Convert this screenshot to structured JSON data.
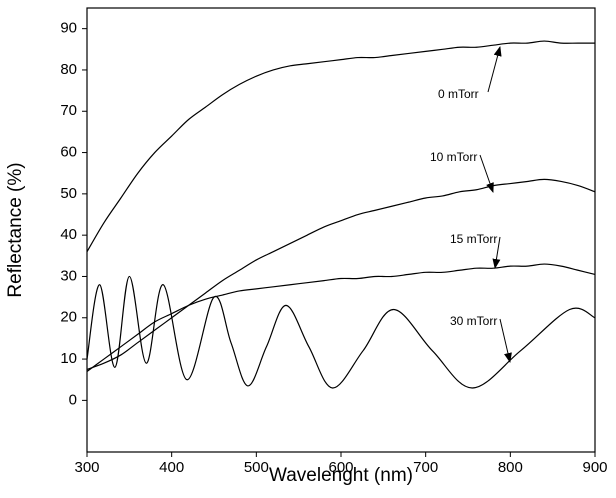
{
  "chart_data": {
    "type": "line",
    "xlabel": "Wavelenght (nm)",
    "ylabel": "Reflectance (%)",
    "xlim": [
      300,
      900
    ],
    "xticks": [
      300,
      400,
      500,
      600,
      700,
      800,
      900
    ],
    "ylim": [
      -12.5,
      95
    ],
    "yticks": [
      0,
      10,
      20,
      30,
      40,
      50,
      60,
      70,
      80,
      90
    ],
    "series": [
      {
        "name": "0 mTorr",
        "color": "#000000",
        "x": [
          300,
          320,
          340,
          360,
          380,
          400,
          420,
          440,
          460,
          480,
          500,
          520,
          540,
          560,
          580,
          600,
          620,
          640,
          660,
          680,
          700,
          720,
          740,
          760,
          780,
          800,
          820,
          840,
          860,
          880,
          900
        ],
        "values": [
          36,
          43,
          49,
          55,
          60,
          64,
          68,
          71,
          74,
          76.5,
          78.5,
          80,
          81,
          81.5,
          82,
          82.5,
          83,
          83,
          83.5,
          84,
          84.5,
          85,
          85.5,
          85.5,
          86,
          86.5,
          86.5,
          87,
          86.5,
          86.5,
          86.5
        ]
      },
      {
        "name": "10 mTorr",
        "color": "#000000",
        "x": [
          300,
          320,
          340,
          360,
          380,
          400,
          420,
          440,
          460,
          480,
          500,
          520,
          540,
          560,
          580,
          600,
          620,
          640,
          660,
          680,
          700,
          720,
          740,
          760,
          780,
          800,
          820,
          840,
          860,
          880,
          900
        ],
        "values": [
          7.5,
          9,
          11,
          14,
          17,
          20,
          23,
          26,
          29,
          31.5,
          34,
          36,
          38,
          40,
          42,
          43.5,
          45,
          46,
          47,
          48,
          49,
          49.5,
          50.5,
          51,
          52,
          52.5,
          53,
          53.5,
          53,
          52,
          50.5
        ]
      },
      {
        "name": "15 mTorr",
        "color": "#000000",
        "x": [
          300,
          320,
          340,
          360,
          380,
          400,
          420,
          440,
          460,
          480,
          500,
          520,
          540,
          560,
          580,
          600,
          620,
          640,
          660,
          680,
          700,
          720,
          740,
          760,
          780,
          800,
          820,
          840,
          860,
          880,
          900
        ],
        "values": [
          7,
          10,
          13,
          16,
          19,
          21,
          23,
          24.5,
          25.5,
          26.5,
          27,
          27.5,
          28,
          28.5,
          29,
          29.5,
          29.5,
          30,
          30,
          30.5,
          31,
          31,
          31.5,
          32,
          32,
          32.5,
          32.5,
          33,
          32.5,
          31.5,
          30.5
        ]
      },
      {
        "name": "30 mTorr",
        "color": "#000000",
        "x": [
          300,
          315,
          333,
          350,
          370,
          390,
          418,
          450,
          470,
          490,
          512,
          535,
          562,
          590,
          626,
          662,
          708,
          755,
          812,
          870,
          900
        ],
        "values": [
          10,
          28,
          8,
          30,
          9,
          28,
          5,
          25,
          14,
          3.5,
          13,
          23,
          13,
          3,
          12,
          22,
          12,
          3,
          12,
          22,
          20
        ]
      }
    ]
  }
}
